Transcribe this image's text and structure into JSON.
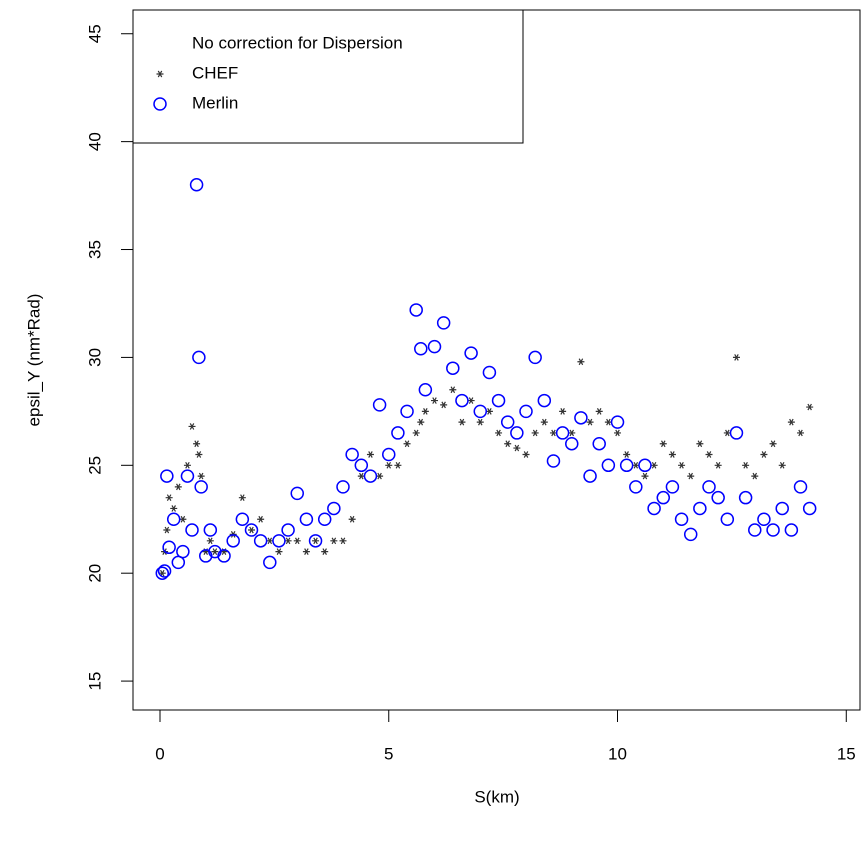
{
  "chart_data": {
    "type": "scatter",
    "xlabel": "S(km)",
    "ylabel": "epsil_Y (nm*Rad)",
    "xlim": [
      -0.59,
      15.3
    ],
    "ylim": [
      13.66,
      46.1
    ],
    "xticks": [
      0,
      5,
      10,
      15
    ],
    "yticks": [
      15,
      20,
      25,
      30,
      35,
      40,
      45
    ],
    "legend_title": "No correction for Dispersion",
    "legend_position": "topleft",
    "series": [
      {
        "name": "CHEF",
        "color": "#333333",
        "marker": "star",
        "x": [
          0.05,
          0.1,
          0.15,
          0.2,
          0.3,
          0.4,
          0.5,
          0.6,
          0.7,
          0.8,
          0.85,
          0.9,
          1.0,
          1.1,
          1.2,
          1.4,
          1.6,
          1.8,
          2.0,
          2.2,
          2.4,
          2.6,
          2.8,
          3.0,
          3.2,
          3.4,
          3.6,
          3.8,
          4.0,
          4.2,
          4.4,
          4.6,
          4.8,
          5.0,
          5.2,
          5.4,
          5.6,
          5.7,
          5.8,
          6.0,
          6.2,
          6.4,
          6.6,
          6.8,
          7.0,
          7.2,
          7.4,
          7.6,
          7.8,
          8.0,
          8.2,
          8.4,
          8.6,
          8.8,
          9.0,
          9.2,
          9.4,
          9.6,
          9.8,
          10.0,
          10.2,
          10.4,
          10.6,
          10.8,
          11.0,
          11.2,
          11.4,
          11.6,
          11.8,
          12.0,
          12.2,
          12.4,
          12.6,
          12.8,
          13.0,
          13.2,
          13.4,
          13.6,
          13.8,
          14.0,
          14.2
        ],
        "y": [
          20.0,
          21.0,
          22.0,
          23.5,
          23.0,
          24.0,
          22.5,
          25.0,
          26.8,
          26.0,
          25.5,
          24.5,
          21.0,
          21.5,
          21.0,
          21.0,
          21.8,
          23.5,
          22.0,
          22.5,
          21.5,
          21.0,
          21.5,
          21.5,
          21.0,
          21.5,
          21.0,
          21.5,
          21.5,
          22.5,
          24.5,
          25.5,
          24.5,
          25.0,
          25.0,
          26.0,
          26.5,
          27.0,
          27.5,
          28.0,
          27.8,
          28.5,
          27.0,
          28.0,
          27.0,
          27.5,
          26.5,
          26.0,
          25.8,
          25.5,
          26.5,
          27.0,
          26.5,
          27.5,
          26.5,
          29.8,
          27.0,
          27.5,
          27.0,
          26.5,
          25.5,
          25.0,
          24.5,
          25.0,
          26.0,
          25.5,
          25.0,
          24.5,
          26.0,
          25.5,
          25.0,
          26.5,
          30.0,
          25.0,
          24.5,
          25.5,
          26.0,
          25.0,
          27.0,
          26.5,
          27.7
        ]
      },
      {
        "name": "Merlin",
        "color": "#0000ff",
        "marker": "circle",
        "x": [
          0.05,
          0.1,
          0.15,
          0.2,
          0.3,
          0.4,
          0.5,
          0.6,
          0.7,
          0.8,
          0.85,
          0.9,
          1.0,
          1.1,
          1.2,
          1.4,
          1.6,
          1.8,
          2.0,
          2.2,
          2.4,
          2.6,
          2.8,
          3.0,
          3.2,
          3.4,
          3.6,
          3.8,
          4.0,
          4.2,
          4.4,
          4.6,
          4.8,
          5.0,
          5.2,
          5.4,
          5.6,
          5.7,
          5.8,
          6.0,
          6.2,
          6.4,
          6.6,
          6.8,
          7.0,
          7.2,
          7.4,
          7.6,
          7.8,
          8.0,
          8.2,
          8.4,
          8.6,
          8.8,
          9.0,
          9.2,
          9.4,
          9.6,
          9.8,
          10.0,
          10.2,
          10.4,
          10.6,
          10.8,
          11.0,
          11.2,
          11.4,
          11.6,
          11.8,
          12.0,
          12.2,
          12.4,
          12.6,
          12.8,
          13.0,
          13.2,
          13.4,
          13.6,
          13.8,
          14.0,
          14.2
        ],
        "y": [
          20.0,
          20.1,
          24.5,
          21.2,
          22.5,
          20.5,
          21.0,
          24.5,
          22.0,
          38.0,
          30.0,
          24.0,
          20.8,
          22.0,
          21.0,
          20.8,
          21.5,
          22.5,
          22.0,
          21.5,
          20.5,
          21.5,
          22.0,
          23.7,
          22.5,
          21.5,
          22.5,
          23.0,
          24.0,
          25.5,
          25.0,
          24.5,
          27.8,
          25.5,
          26.5,
          27.5,
          32.2,
          30.4,
          28.5,
          30.5,
          31.6,
          29.5,
          28.0,
          30.2,
          27.5,
          29.3,
          28.0,
          27.0,
          26.5,
          27.5,
          30.0,
          28.0,
          25.2,
          26.5,
          26.0,
          27.2,
          24.5,
          26.0,
          25.0,
          27.0,
          25.0,
          24.0,
          25.0,
          23.0,
          23.5,
          24.0,
          22.5,
          21.8,
          23.0,
          24.0,
          23.5,
          22.5,
          26.5,
          23.5,
          22.0,
          22.5,
          22.0,
          23.0,
          22.0,
          24.0,
          23.0
        ]
      }
    ]
  }
}
